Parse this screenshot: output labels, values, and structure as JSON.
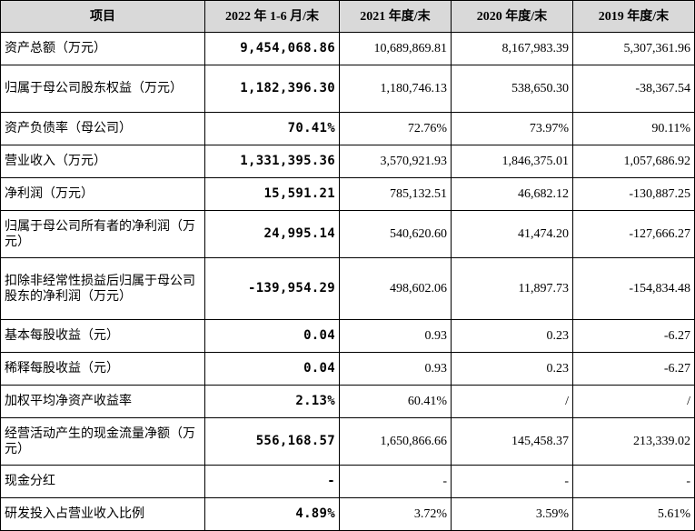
{
  "table": {
    "headers": [
      "项目",
      "2022 年 1-6 月/末",
      "2021 年度/末",
      "2020 年度/末",
      "2019 年度/末"
    ],
    "rows": [
      {
        "label": "资产总额（万元）",
        "values": [
          "9,454,068.86",
          "10,689,869.81",
          "8,167,983.39",
          "5,307,361.96"
        ]
      },
      {
        "label": "归属于母公司股东权益（万元）",
        "values": [
          "1,182,396.30",
          "1,180,746.13",
          "538,650.30",
          "-38,367.54"
        ]
      },
      {
        "label": "资产负债率（母公司）",
        "values": [
          "70.41%",
          "72.76%",
          "73.97%",
          "90.11%"
        ]
      },
      {
        "label": "营业收入（万元）",
        "values": [
          "1,331,395.36",
          "3,570,921.93",
          "1,846,375.01",
          "1,057,686.92"
        ]
      },
      {
        "label": "净利润（万元）",
        "values": [
          "15,591.21",
          "785,132.51",
          "46,682.12",
          "-130,887.25"
        ]
      },
      {
        "label": "归属于母公司所有者的净利润（万元）",
        "values": [
          "24,995.14",
          "540,620.60",
          "41,474.20",
          "-127,666.27"
        ]
      },
      {
        "label": "扣除非经常性损益后归属于母公司股东的净利润（万元）",
        "values": [
          "-139,954.29",
          "498,602.06",
          "11,897.73",
          "-154,834.48"
        ]
      },
      {
        "label": "基本每股收益（元）",
        "values": [
          "0.04",
          "0.93",
          "0.23",
          "-6.27"
        ]
      },
      {
        "label": "稀释每股收益（元）",
        "values": [
          "0.04",
          "0.93",
          "0.23",
          "-6.27"
        ]
      },
      {
        "label": "加权平均净资产收益率",
        "values": [
          "2.13%",
          "60.41%",
          "/",
          "/"
        ]
      },
      {
        "label": "经营活动产生的现金流量净额（万元）",
        "values": [
          "556,168.57",
          "1,650,866.66",
          "145,458.37",
          "213,339.02"
        ]
      },
      {
        "label": "现金分红",
        "values": [
          "-",
          "-",
          "-",
          "-"
        ]
      },
      {
        "label": "研发投入占营业收入比例",
        "values": [
          "4.89%",
          "3.72%",
          "3.59%",
          "5.61%"
        ]
      }
    ]
  }
}
